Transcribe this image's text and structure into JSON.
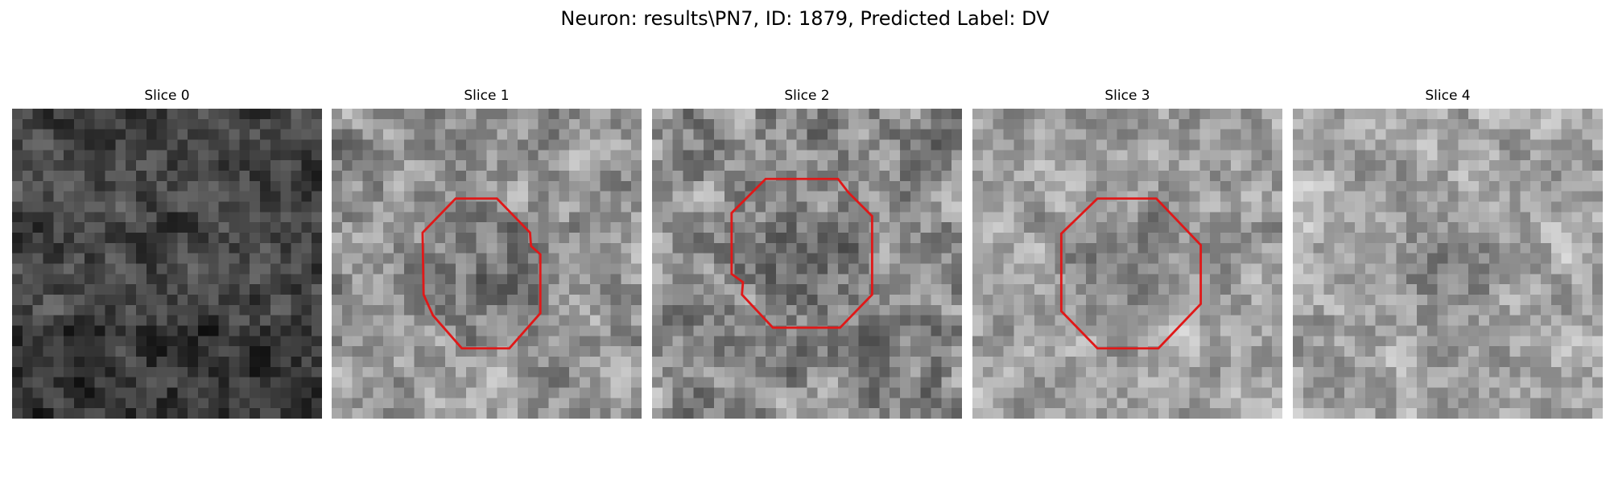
{
  "figure": {
    "title": "Neuron: results\\PN7, ID: 1879, Predicted Label: DV"
  },
  "contour_color": "#e01818",
  "panels": [
    {
      "title": "Slice 0",
      "base": 70,
      "contrast": 45,
      "has_contour": false
    },
    {
      "title": "Slice 1",
      "base": 150,
      "contrast": 55,
      "has_contour": true
    },
    {
      "title": "Slice 2",
      "base": 140,
      "contrast": 60,
      "has_contour": true
    },
    {
      "title": "Slice 3",
      "base": 160,
      "contrast": 50,
      "has_contour": true
    },
    {
      "title": "Slice 4",
      "base": 165,
      "contrast": 50,
      "has_contour": false
    }
  ]
}
